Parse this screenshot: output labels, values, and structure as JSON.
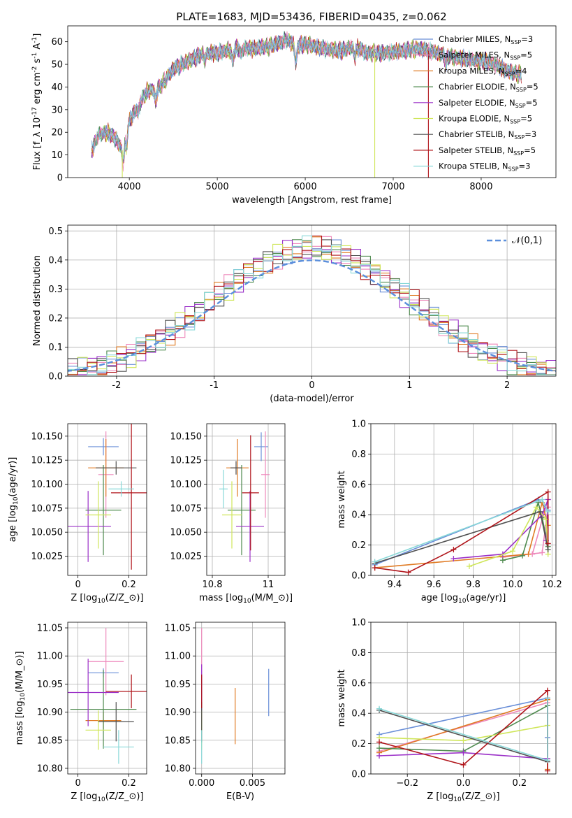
{
  "figure": {
    "title": "PLATE=1683, MJD=53436, FIBERID=0435, z=0.062"
  },
  "models": [
    {
      "name": "Chabrier MILES, N$_{SSP}$=3",
      "color": "#6a8fd8"
    },
    {
      "name": "Salpeter MILES, N$_{SSP}$=5",
      "color": "#ee88bb"
    },
    {
      "name": "Kroupa MILES, N$_{SSP}$=4",
      "color": "#e07b24"
    },
    {
      "name": "Chabrier ELODIE, N$_{SSP}$=5",
      "color": "#4e8a4e"
    },
    {
      "name": "Salpeter ELODIE, N$_{SSP}$=5",
      "color": "#9b30c8"
    },
    {
      "name": "Kroupa ELODIE, N$_{SSP}$=5",
      "color": "#cfe65a"
    },
    {
      "name": "Chabrier STELIB, N$_{SSP}$=3",
      "color": "#505050"
    },
    {
      "name": "Salpeter STELIB, N$_{SSP}$=5",
      "color": "#b0141a"
    },
    {
      "name": "Kroupa STELIB, N$_{SSP}$=3",
      "color": "#88d8d8"
    }
  ],
  "chart_data": [
    {
      "id": "spectrum",
      "type": "line",
      "xlabel": "wavelength [Angstrom, rest frame]",
      "ylabel": "Flux [$f_\\lambda 10^{-17}$ erg cm$^{-2}$ s$^{-1}$ A$^{-1}$]",
      "xlim": [
        3300,
        8850
      ],
      "ylim": [
        0,
        67
      ],
      "xticks": [
        4000,
        5000,
        6000,
        7000,
        8000
      ],
      "yticks": [
        0,
        10,
        20,
        30,
        40,
        50,
        60
      ],
      "legend": "top-right",
      "x": [
        3570,
        3650,
        3750,
        3850,
        3920,
        4000,
        4100,
        4200,
        4350,
        4500,
        4700,
        4860,
        5000,
        5200,
        5400,
        5600,
        5800,
        5890,
        6000,
        6200,
        6400,
        6563,
        6700,
        6900,
        7100,
        7300,
        7500,
        7700,
        7900,
        8100,
        8300,
        8500
      ],
      "y": [
        12,
        19,
        20,
        17,
        12,
        25,
        32,
        38,
        40,
        48,
        52,
        55,
        55,
        57,
        57,
        58,
        61,
        58,
        59,
        57,
        56,
        58,
        55,
        55,
        56,
        57,
        55,
        53,
        52,
        51,
        47,
        45
      ],
      "dips": [
        {
          "x": 3920,
          "y": 0,
          "model": 5
        },
        {
          "x": 6790,
          "y": 0,
          "model": 5
        },
        {
          "x": 7400,
          "y": 0,
          "model": 7
        }
      ]
    },
    {
      "id": "residuals",
      "type": "histogram",
      "xlabel": "(data-model)/error",
      "ylabel": "Normed distribution",
      "xlim": [
        -2.5,
        2.5
      ],
      "ylim": [
        0,
        0.52
      ],
      "xticks": [
        -2,
        -1,
        0,
        1,
        2
      ],
      "yticks": [
        0.0,
        0.1,
        0.2,
        0.3,
        0.4,
        0.5
      ],
      "bin_width": 0.1,
      "bins_from": -2.5,
      "legend": "top-right",
      "reference_curve": "$\\mathcal{N}(0,1)$",
      "reference_color": "#5b8fdc"
    },
    {
      "id": "age-vs-Z",
      "type": "errorbar",
      "xlabel": "Z [log$_{10}$($Z/Z_\\odot$)]",
      "ylabel": "age  [log$_{10}$($age/yr$)]",
      "xlim": [
        -0.04,
        0.27
      ],
      "ylim": [
        10.005,
        10.163
      ],
      "xticks": [
        0.0,
        0.2
      ],
      "yticks": [
        10.025,
        10.05,
        10.075,
        10.1,
        10.125,
        10.15
      ],
      "points": [
        {
          "model": 0,
          "x": 0.1,
          "xerr": 0.06,
          "y": 10.139,
          "yerr": 0.009
        },
        {
          "model": 1,
          "x": 0.11,
          "xerr": 0.03,
          "y": 10.11,
          "yerr": 0.045
        },
        {
          "model": 2,
          "x": 0.11,
          "xerr": 0.07,
          "y": 10.117,
          "yerr": 0.03
        },
        {
          "model": 3,
          "x": 0.1,
          "xerr": 0.07,
          "y": 10.073,
          "yerr": 0.047
        },
        {
          "model": 4,
          "x": 0.04,
          "xerr": 0.09,
          "y": 10.056,
          "yerr": 0.037
        },
        {
          "model": 5,
          "x": 0.08,
          "xerr": 0.05,
          "y": 10.068,
          "yerr": 0.035
        },
        {
          "model": 6,
          "x": 0.15,
          "xerr": 0.08,
          "y": 10.117,
          "yerr": 0.007
        },
        {
          "model": 7,
          "x": 0.21,
          "xerr": 0.08,
          "y": 10.091,
          "yerr": 0.08
        },
        {
          "model": 8,
          "x": 0.17,
          "xerr": 0.05,
          "y": 10.095,
          "yerr": 0.008
        }
      ]
    },
    {
      "id": "age-vs-mass",
      "type": "errorbar",
      "xlabel": "mass [log$_{10}$($M/M_\\odot$)]",
      "ylabel": "",
      "xlim": [
        10.78,
        11.06
      ],
      "ylim": [
        10.005,
        10.163
      ],
      "xticks": [
        10.8,
        11.0
      ],
      "yticks": [
        10.025,
        10.05,
        10.075,
        10.1,
        10.125,
        10.15
      ],
      "points": [
        {
          "model": 0,
          "x": 10.975,
          "xerr": 0.025,
          "y": 10.139,
          "yerr": 0.015
        },
        {
          "model": 1,
          "x": 10.99,
          "xerr": 0.015,
          "y": 10.11,
          "yerr": 0.045
        },
        {
          "model": 2,
          "x": 10.89,
          "xerr": 0.04,
          "y": 10.117,
          "yerr": 0.03
        },
        {
          "model": 3,
          "x": 10.905,
          "xerr": 0.05,
          "y": 10.073,
          "yerr": 0.047
        },
        {
          "model": 4,
          "x": 10.935,
          "xerr": 0.05,
          "y": 10.056,
          "yerr": 0.037
        },
        {
          "model": 5,
          "x": 10.87,
          "xerr": 0.035,
          "y": 10.068,
          "yerr": 0.035
        },
        {
          "model": 6,
          "x": 10.885,
          "xerr": 0.02,
          "y": 10.117,
          "yerr": 0.007
        },
        {
          "model": 7,
          "x": 10.937,
          "xerr": 0.03,
          "y": 10.091,
          "yerr": 0.06
        },
        {
          "model": 8,
          "x": 10.84,
          "xerr": 0.015,
          "y": 10.095,
          "yerr": 0.02
        }
      ]
    },
    {
      "id": "weight-vs-age",
      "type": "line",
      "xlabel": "age  [log$_{10}$($age/yr$)]",
      "ylabel": "mass weight",
      "xlim": [
        9.28,
        10.22
      ],
      "ylim": [
        0.0,
        1.0
      ],
      "xticks": [
        9.4,
        9.6,
        9.8,
        10.0,
        10.2
      ],
      "yticks": [
        0.0,
        0.2,
        0.4,
        0.6,
        0.8,
        1.0
      ],
      "series": [
        {
          "model": 0,
          "points": [
            [
              9.3,
              0.07
            ],
            [
              10.13,
              0.5
            ],
            [
              10.18,
              0.43
            ]
          ]
        },
        {
          "model": 1,
          "points": [
            [
              9.95,
              0.12
            ],
            [
              10.15,
              0.15
            ],
            [
              10.18,
              0.45
            ],
            [
              10.18,
              0.5
            ],
            [
              10.1,
              0.14
            ]
          ]
        },
        {
          "model": 2,
          "points": [
            [
              9.3,
              0.05
            ],
            [
              10.08,
              0.14
            ],
            [
              10.15,
              0.48
            ],
            [
              10.18,
              0.33
            ]
          ]
        },
        {
          "model": 3,
          "points": [
            [
              9.95,
              0.1
            ],
            [
              10.05,
              0.13
            ],
            [
              10.13,
              0.48
            ],
            [
              10.15,
              0.38
            ],
            [
              10.18,
              0.19
            ]
          ]
        },
        {
          "model": 4,
          "points": [
            [
              9.7,
              0.11
            ],
            [
              9.95,
              0.14
            ],
            [
              10.15,
              0.4
            ],
            [
              10.18,
              0.5
            ],
            [
              10.17,
              0.23
            ]
          ]
        },
        {
          "model": 5,
          "points": [
            [
              9.78,
              0.06
            ],
            [
              10.0,
              0.16
            ],
            [
              10.12,
              0.45
            ],
            [
              10.17,
              0.37
            ],
            [
              10.18,
              0.14
            ]
          ]
        },
        {
          "model": 6,
          "points": [
            [
              9.3,
              0.08
            ],
            [
              10.14,
              0.42
            ],
            [
              10.18,
              0.17
            ]
          ]
        },
        {
          "model": 7,
          "points": [
            [
              9.3,
              0.05
            ],
            [
              9.47,
              0.02
            ],
            [
              9.7,
              0.17
            ],
            [
              10.18,
              0.55
            ],
            [
              10.18,
              0.21
            ]
          ]
        },
        {
          "model": 8,
          "points": [
            [
              9.3,
              0.09
            ],
            [
              10.15,
              0.5
            ],
            [
              10.18,
              0.42
            ]
          ]
        }
      ]
    },
    {
      "id": "mass-vs-Z",
      "type": "errorbar",
      "xlabel": "Z [log$_{10}$($Z/Z_\\odot$)]",
      "ylabel": "mass [log$_{10}$($M/M_\\odot$)]",
      "xlim": [
        -0.04,
        0.27
      ],
      "ylim": [
        10.79,
        11.06
      ],
      "xticks": [
        0.0,
        0.2
      ],
      "yticks": [
        10.8,
        10.85,
        10.9,
        10.95,
        11.0,
        11.05
      ],
      "points": [
        {
          "model": 0,
          "x": 0.1,
          "xerr": 0.06,
          "y": 10.97,
          "yerr": 0.008
        },
        {
          "model": 1,
          "x": 0.11,
          "xerr": 0.07,
          "y": 10.99,
          "yerr": 0.06
        },
        {
          "model": 2,
          "x": 0.1,
          "xerr": 0.07,
          "y": 10.885,
          "yerr": 0.015
        },
        {
          "model": 3,
          "x": 0.1,
          "xerr": 0.13,
          "y": 10.905,
          "yerr": 0.07
        },
        {
          "model": 4,
          "x": 0.04,
          "xerr": 0.12,
          "y": 10.935,
          "yerr": 0.06
        },
        {
          "model": 5,
          "x": 0.08,
          "xerr": 0.05,
          "y": 10.868,
          "yerr": 0.035
        },
        {
          "model": 6,
          "x": 0.15,
          "xerr": 0.07,
          "y": 10.883,
          "yerr": 0.035
        },
        {
          "model": 7,
          "x": 0.21,
          "xerr": 0.1,
          "y": 10.937,
          "yerr": 0.03
        },
        {
          "model": 8,
          "x": 0.16,
          "xerr": 0.06,
          "y": 10.838,
          "yerr": 0.03
        }
      ]
    },
    {
      "id": "mass-vs-ebv",
      "type": "errorbar",
      "xlabel": "E(B-V)",
      "ylabel": "",
      "xlim": [
        -0.0006,
        0.0082
      ],
      "ylim": [
        10.79,
        11.06
      ],
      "xticks": [
        0.0,
        0.005
      ],
      "xtick_labels": [
        "0.000",
        "0.005"
      ],
      "yticks": [
        10.8,
        10.85,
        10.9,
        10.95,
        11.0,
        11.05
      ],
      "points": [
        {
          "model": 0,
          "x": 0.0066,
          "xerr": 0,
          "y": 10.935,
          "yerr": 0.042
        },
        {
          "model": 2,
          "x": 0.0033,
          "xerr": 0,
          "y": 10.893,
          "yerr": 0.05
        },
        {
          "model": 1,
          "x": 0.0,
          "xerr": 0,
          "y": 10.99,
          "yerr": 0.06
        },
        {
          "model": 3,
          "x": 0.0,
          "xerr": 0,
          "y": 10.905,
          "yerr": 0.06
        },
        {
          "model": 4,
          "x": 0.0,
          "xerr": 0,
          "y": 10.935,
          "yerr": 0.05
        },
        {
          "model": 5,
          "x": 0.0,
          "xerr": 0,
          "y": 10.868,
          "yerr": 0.035
        },
        {
          "model": 6,
          "x": 0.0,
          "xerr": 0,
          "y": 10.883,
          "yerr": 0.035
        },
        {
          "model": 7,
          "x": 0.0,
          "xerr": 0,
          "y": 10.937,
          "yerr": 0.03
        },
        {
          "model": 8,
          "x": 0.0,
          "xerr": 0,
          "y": 10.838,
          "yerr": 0.03
        }
      ]
    },
    {
      "id": "weight-vs-Z",
      "type": "line",
      "xlabel": "Z [log$_{10}$($Z/Z_\\odot$)]",
      "ylabel": "mass weight",
      "xlim": [
        -0.33,
        0.33
      ],
      "ylim": [
        0.0,
        1.0
      ],
      "xticks": [
        -0.2,
        0.0,
        0.2
      ],
      "yticks": [
        0.0,
        0.2,
        0.4,
        0.6,
        0.8,
        1.0
      ],
      "series": [
        {
          "model": 0,
          "points": [
            [
              -0.3,
              0.26
            ],
            [
              0.3,
              0.5
            ],
            [
              0.3,
              0.24
            ]
          ]
        },
        {
          "model": 1,
          "points": [
            [
              -0.3,
              0.15
            ],
            [
              0.3,
              0.47
            ],
            [
              0.3,
              0.1
            ]
          ]
        },
        {
          "model": 2,
          "points": [
            [
              -0.3,
              0.14
            ],
            [
              0.3,
              0.49
            ],
            [
              0.3,
              0.03
            ]
          ]
        },
        {
          "model": 3,
          "points": [
            [
              -0.3,
              0.17
            ],
            [
              0.0,
              0.15
            ],
            [
              0.3,
              0.45
            ],
            [
              0.3,
              0.1
            ]
          ]
        },
        {
          "model": 4,
          "points": [
            [
              -0.3,
              0.12
            ],
            [
              0.0,
              0.14
            ],
            [
              0.3,
              0.1
            ],
            [
              0.3,
              0.5
            ]
          ]
        },
        {
          "model": 5,
          "points": [
            [
              -0.3,
              0.24
            ],
            [
              0.0,
              0.22
            ],
            [
              0.3,
              0.32
            ]
          ]
        },
        {
          "model": 6,
          "points": [
            [
              -0.3,
              0.42
            ],
            [
              0.3,
              0.08
            ],
            [
              0.3,
              0.5
            ]
          ]
        },
        {
          "model": 7,
          "points": [
            [
              -0.3,
              0.21
            ],
            [
              0.0,
              0.06
            ],
            [
              0.3,
              0.55
            ],
            [
              0.3,
              0.02
            ]
          ]
        },
        {
          "model": 8,
          "points": [
            [
              -0.3,
              0.43
            ],
            [
              0.3,
              0.09
            ],
            [
              0.3,
              0.5
            ]
          ]
        }
      ]
    }
  ]
}
